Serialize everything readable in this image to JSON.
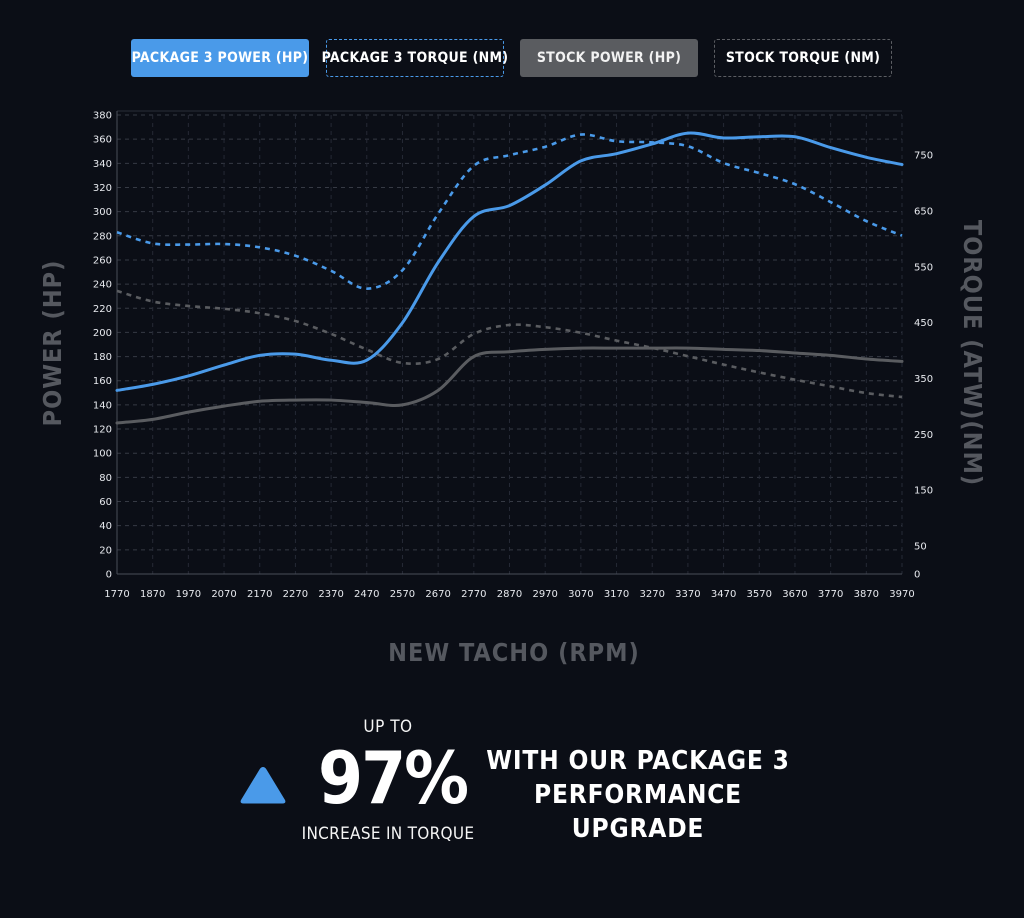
{
  "legend": {
    "p3_power": "PACKAGE 3 POWER (HP)",
    "p3_torque": "PACKAGE 3 TORQUE (NM)",
    "stock_power": "STOCK POWER (HP)",
    "stock_torque": "STOCK TORQUE (NM)"
  },
  "colors": {
    "package": "#4a9ae9",
    "stock": "#5a5c60",
    "background": "#0b0e16",
    "axis_title": "#55585f"
  },
  "chart_data": {
    "type": "line",
    "xlabel": "NEW TACHO (RPM)",
    "ylabel_left": "POWER (HP)",
    "ylabel_right": "TORQUE (ATW)(NM)",
    "x": [
      1770,
      1870,
      1970,
      2070,
      2170,
      2270,
      2370,
      2470,
      2570,
      2670,
      2770,
      2870,
      2970,
      3070,
      3170,
      3270,
      3370,
      3470,
      3570,
      3670,
      3770,
      3870,
      3970
    ],
    "xlim": [
      1770,
      3970
    ],
    "x_ticks": [
      1770,
      1870,
      1970,
      2070,
      2170,
      2270,
      2370,
      2470,
      2570,
      2670,
      2770,
      2870,
      2970,
      3070,
      3170,
      3270,
      3370,
      3470,
      3570,
      3670,
      3770,
      3870,
      3970
    ],
    "ylim_left": [
      0,
      380
    ],
    "y_ticks_left": [
      0,
      20,
      40,
      60,
      80,
      100,
      120,
      140,
      160,
      180,
      200,
      220,
      240,
      260,
      280,
      300,
      320,
      340,
      360,
      380
    ],
    "ylim_right": [
      0,
      822
    ],
    "y_ticks_right": [
      0,
      50,
      150,
      250,
      350,
      450,
      550,
      650,
      750
    ],
    "grid": true,
    "series": [
      {
        "name": "PACKAGE 3 POWER (HP)",
        "axis": "left",
        "style": "solid",
        "color": "#4a9ae9",
        "values": [
          152,
          157,
          164,
          173,
          181,
          182,
          177,
          177,
          208,
          258,
          296,
          305,
          322,
          342,
          348,
          356,
          365,
          361,
          362,
          362,
          353,
          345,
          339
        ]
      },
      {
        "name": "PACKAGE 3 TORQUE (NM)",
        "axis": "right",
        "style": "dashed",
        "color": "#4a9ae9",
        "values": [
          612,
          592,
          590,
          591,
          585,
          570,
          543,
          511,
          544,
          645,
          731,
          750,
          765,
          787,
          775,
          773,
          766,
          736,
          718,
          698,
          666,
          632,
          606
        ]
      },
      {
        "name": "STOCK POWER (HP)",
        "axis": "left",
        "style": "solid",
        "color": "#5a5c60",
        "values": [
          125,
          128,
          134,
          139,
          143,
          144,
          144,
          142,
          140,
          152,
          180,
          184,
          186,
          187,
          187,
          187,
          187,
          186,
          185,
          183,
          181,
          178,
          176
        ]
      },
      {
        "name": "STOCK TORQUE (NM)",
        "axis": "right",
        "style": "dashed",
        "color": "#5a5c60",
        "values": [
          507,
          488,
          480,
          475,
          467,
          453,
          430,
          402,
          378,
          385,
          430,
          446,
          442,
          432,
          418,
          405,
          390,
          375,
          361,
          348,
          336,
          324,
          317
        ]
      }
    ]
  },
  "promo": {
    "icon": "triangle-up-icon",
    "up_to": "UP TO",
    "percent": "97%",
    "subtitle": "INCREASE IN TORQUE",
    "headline_line1": "WITH OUR PACKAGE 3",
    "headline_line2": "PERFORMANCE UPGRADE"
  }
}
